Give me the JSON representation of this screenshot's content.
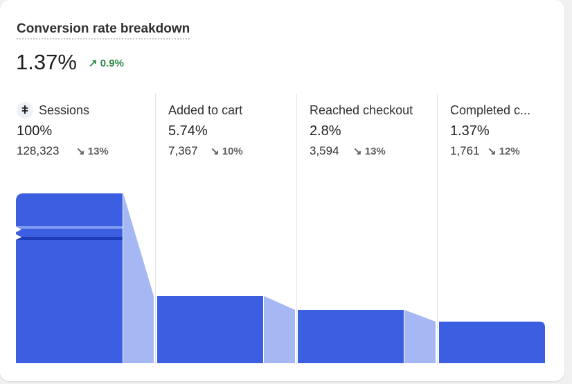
{
  "card": {
    "title": "Conversion rate breakdown",
    "value": "1.37%",
    "change": "↗ 0.9%"
  },
  "stages": [
    {
      "name": "Sessions",
      "percent": "100%",
      "count": "128,323",
      "drop": "↘ 13%",
      "icon": "sessions-icon"
    },
    {
      "name": "Added to cart",
      "percent": "5.74%",
      "count": "7,367",
      "drop": "↘ 10%"
    },
    {
      "name": "Reached checkout",
      "percent": "2.8%",
      "count": "3,594",
      "drop": "↘ 13%"
    },
    {
      "name": "Completed c...",
      "percent": "1.37%",
      "count": "1,761",
      "drop": "↘ 12%"
    }
  ],
  "colors": {
    "bar": "#3b5fe0",
    "connector": "#9fb2f2",
    "positive": "#2f8a49"
  }
}
